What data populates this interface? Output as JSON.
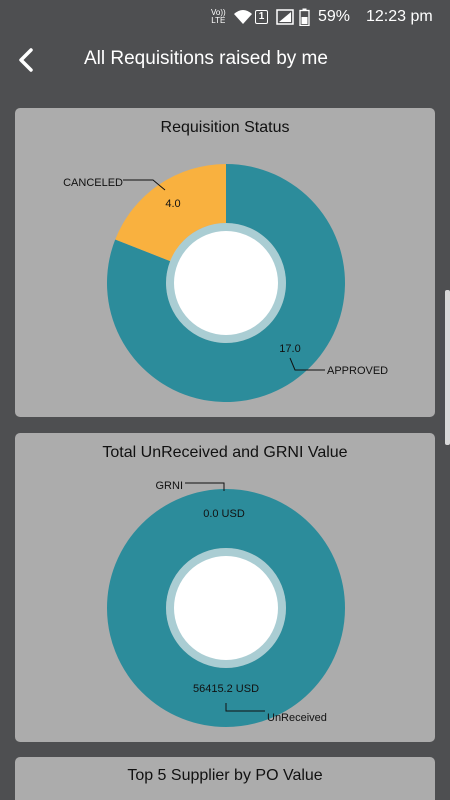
{
  "status_bar": {
    "volte_top": "Vo))",
    "volte_bottom": "LTE",
    "sim_number": "1",
    "battery_percent": "59%",
    "time": "12:23 pm"
  },
  "header": {
    "title": "All Requisitions raised by me",
    "back_icon": "chevron-left-icon"
  },
  "colors": {
    "teal": "#2c8c9b",
    "orange": "#f9b13f",
    "card_bg": "#acacac",
    "page_bg": "#4e4f51"
  },
  "cards": {
    "requisition_status": {
      "title": "Requisition Status"
    },
    "grni": {
      "title": "Total UnReceived and GRNI Value"
    },
    "top_suppliers": {
      "title": "Top 5 Supplier by PO Value"
    }
  },
  "chart_data": [
    {
      "type": "pie",
      "title": "Requisition Status",
      "categories": [
        "APPROVED",
        "CANCELED"
      ],
      "values": [
        17.0,
        4.0
      ],
      "value_labels": [
        "17.0",
        "4.0"
      ],
      "colors": [
        "#2c8c9b",
        "#f9b13f"
      ]
    },
    {
      "type": "pie",
      "title": "Total UnReceived and GRNI Value",
      "categories": [
        "UnReceived",
        "GRNI"
      ],
      "values": [
        56415.2,
        0.0
      ],
      "value_labels": [
        "56415.2 USD",
        "0.0 USD"
      ],
      "colors": [
        "#2c8c9b",
        "#f9b13f"
      ]
    }
  ]
}
